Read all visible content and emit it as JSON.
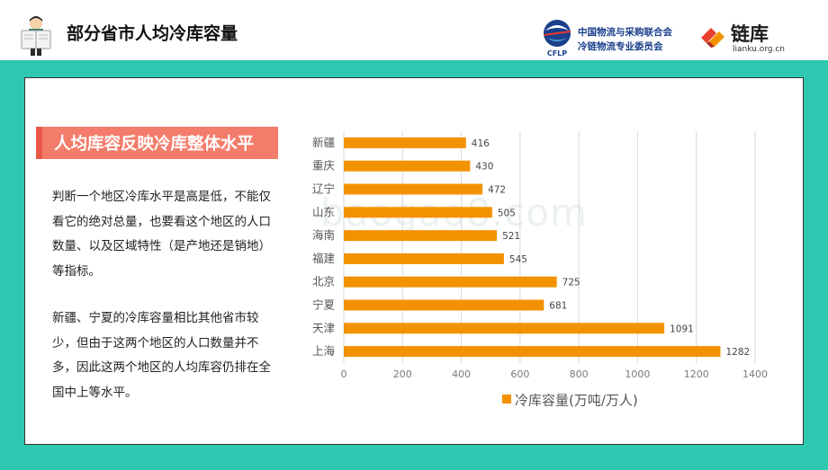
{
  "header": {
    "title": "部分省市人均冷库容量",
    "cflp_name_line1": "中国物流与采购联合会",
    "cflp_name_line2": "冷链物流专业委员会",
    "cflp_abbr": "CFLP",
    "lianku_name": "链库",
    "lianku_url": "lianku.org.cn"
  },
  "section": {
    "heading": "人均库容反映冷库整体水平",
    "paragraph1": "判断一个地区冷库水平是高是低，不能仅看它的绝对总量，也要看这个地区的人口数量、以及区域特性（是产地还是销地）等指标。",
    "paragraph2": "新疆、宁夏的冷库容量相比其他省市较少，但由于这两个地区的人口数量并不多，因此这两个地区的人均库容仍排在全国中上等水平。"
  },
  "watermark": "baogao8.com",
  "colors": {
    "accent_teal": "#2ec7b0",
    "bar": "#f39200",
    "heading_bg": "#f47c6b"
  },
  "chart_data": {
    "type": "bar",
    "orientation": "horizontal",
    "categories": [
      "新疆",
      "重庆",
      "辽宁",
      "山东",
      "海南",
      "福建",
      "北京",
      "宁夏",
      "天津",
      "上海"
    ],
    "series": [
      {
        "name": "冷库容量(万吨/万人)",
        "values": [
          416,
          430,
          472,
          505,
          521,
          545,
          725,
          681,
          1091,
          1282
        ]
      }
    ],
    "xlim": [
      0,
      1400
    ],
    "xticks": [
      0,
      200,
      400,
      600,
      800,
      1000,
      1200,
      1400
    ],
    "grid": true,
    "legend": "bottom"
  }
}
